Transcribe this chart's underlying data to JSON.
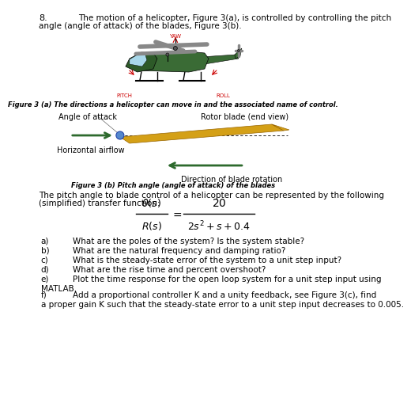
{
  "question_number": "8.",
  "intro_line1": "The motion of a helicopter, Figure 3(a), is controlled by controlling the pitch",
  "intro_line2": "angle (angle of attack) of the blades, Figure 3(b).",
  "fig3a_caption": "Figure 3 (a) The directions a helicopter can move in and the associated name of control.",
  "fig3b_caption": "Figure 3 (b) Pitch angle (angle of attack) of the blades",
  "angle_of_attack": "Angle of attack",
  "rotor_blade": "Rotor blade (end view)",
  "horizontal_airflow": "Horizontal airflow",
  "direction_blade": "Direction of blade rotation",
  "pitch_label": "PITCH",
  "yaw_label": "YAW",
  "roll_label": "ROLL",
  "transfer_fn_line1": "The pitch angle to blade control of a helicopter can be represented by the following",
  "transfer_fn_line2": "(simplified) transfer function:",
  "bg_color": "#ffffff",
  "heli_body_color": "#3a6b35",
  "heli_dark_color": "#2d5a28",
  "blade_color": "#d4a017",
  "green_arrow_color": "#2d6a2d",
  "red_arrow_color": "#cc0000",
  "q_labels": [
    "a)",
    "b)",
    "c)",
    "d)",
    "e)",
    "f)"
  ],
  "q_texts": [
    "What are the poles of the system? Is the system stable?",
    "What are the natural frequency and damping ratio?",
    "What is the steady-state error of the system to a unit step input?",
    "What are the rise time and percent overshoot?",
    "Plot the time response for the open loop system for a unit step input using",
    "Add a proportional controller K and a unity feedback, see Figure 3(c), find"
  ],
  "q_extra": [
    "",
    "",
    "",
    "",
    "MATLAB.",
    "a proper gain K such that the steady-state error to a unit step input decreases to 0.005."
  ]
}
